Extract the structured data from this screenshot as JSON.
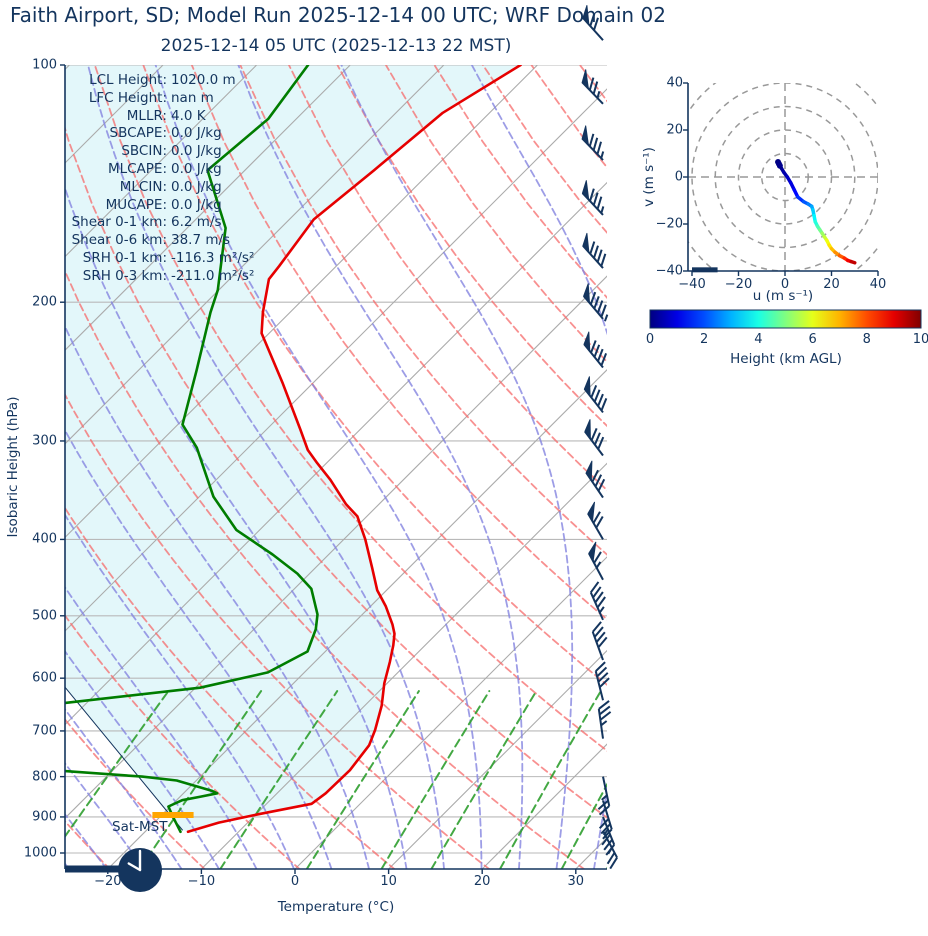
{
  "title": "Faith Airport, SD; Model Run 2025-12-14 00 UTC; WRF Domain 02",
  "subtitle": "2025-12-14 05 UTC  (2025-12-13 22 MST)",
  "colors": {
    "ink": "#14355e",
    "temperature": "#e60000",
    "dewpoint": "#007d00",
    "fill": "#e3f7fa",
    "isobar": "#b9b9b9",
    "isotherm": "#ababab",
    "dry_adiabat": "#f56b6b",
    "moist_adiabat": "#8585e0",
    "mixing_ratio": "#2f9e2f",
    "lcl_marker": "#ffa500",
    "hodo_grid": "#999999"
  },
  "skewt": {
    "xlabel": "Temperature (°C)",
    "ylabel": "Isobaric Height (hPa)",
    "surface_label": "Sat-MST",
    "x_ticks": [
      -20,
      -10,
      0,
      10,
      20,
      30
    ],
    "y_ticks": [
      100,
      200,
      300,
      400,
      500,
      600,
      700,
      800,
      900,
      1000
    ],
    "stats": [
      {
        "label": "LCL Height",
        "value": "1020.0 m"
      },
      {
        "label": "LFC Height",
        "value": "nan m"
      },
      {
        "label": "MLLR",
        "value": "4.0 K"
      },
      {
        "label": "SBCAPE",
        "value": "0.0 J/kg"
      },
      {
        "label": "SBCIN",
        "value": "0.0 J/kg"
      },
      {
        "label": "MLCAPE",
        "value": "0.0 J/kg"
      },
      {
        "label": "MLCIN",
        "value": "0.0 J/kg"
      },
      {
        "label": "MUCAPE",
        "value": "0.0 J/kg"
      },
      {
        "label": "Shear 0-1 km",
        "value": "6.2 m/s"
      },
      {
        "label": "Shear 0-6 km",
        "value": "38.7 m/s"
      },
      {
        "label": "SRH 0-1 km",
        "value": "-116.3 m²/s²"
      },
      {
        "label": "SRH 0-3 km",
        "value": "-211.0 m²/s²"
      }
    ]
  },
  "hodograph": {
    "u_label": "u (m s⁻¹)",
    "v_label": "v (m s⁻¹)",
    "ticks": [
      -40,
      -20,
      0,
      20,
      40
    ],
    "rings": [
      10,
      20,
      30,
      40,
      50
    ],
    "colorbar": {
      "label": "Height (km AGL)",
      "min": 0,
      "max": 10,
      "ticks": [
        0,
        2,
        4,
        6,
        8,
        10
      ],
      "colormap": "jet"
    }
  },
  "chart_data": [
    {
      "type": "skewt",
      "pressure_range_hpa": [
        100,
        1050
      ],
      "temperature_axis_c": [
        -25,
        33
      ],
      "isotherm_step_c": 10,
      "isobar_step_hpa": 100,
      "dry_adiabats_theta_k": {
        "start": 240,
        "end": 440,
        "step": 10
      },
      "moist_adiabats_start_c": {
        "start": -60,
        "end": 32,
        "step": 4
      },
      "mixing_ratios_g_kg": [
        0.4,
        1,
        2,
        4,
        7,
        10,
        16,
        24,
        32
      ],
      "temperature_profile_p_t": [
        [
          100,
          -61.8
        ],
        [
          115,
          -65.0
        ],
        [
          136,
          -66.2
        ],
        [
          157,
          -67.4
        ],
        [
          180,
          -66.1
        ],
        [
          187,
          -65.8
        ],
        [
          206,
          -62.9
        ],
        [
          219,
          -60.8
        ],
        [
          253,
          -53.3
        ],
        [
          290,
          -46.4
        ],
        [
          308,
          -43.4
        ],
        [
          320,
          -41.0
        ],
        [
          336,
          -37.8
        ],
        [
          361,
          -33.5
        ],
        [
          374,
          -31.0
        ],
        [
          400,
          -27.7
        ],
        [
          435,
          -23.9
        ],
        [
          464,
          -21.0
        ],
        [
          486,
          -18.4
        ],
        [
          513,
          -15.7
        ],
        [
          527,
          -14.5
        ],
        [
          545,
          -13.4
        ],
        [
          572,
          -12.0
        ],
        [
          609,
          -10.3
        ],
        [
          650,
          -8.2
        ],
        [
          698,
          -6.3
        ],
        [
          730,
          -5.3
        ],
        [
          785,
          -4.7
        ],
        [
          840,
          -4.8
        ],
        [
          866,
          -5.2
        ],
        [
          893,
          -9.8
        ],
        [
          915,
          -13.1
        ],
        [
          940,
          -15.4
        ]
      ],
      "dewpoint_profile_p_t": [
        [
          100,
          -84.5
        ],
        [
          117,
          -83.0
        ],
        [
          136,
          -84.0
        ],
        [
          161,
          -75.9
        ],
        [
          193,
          -70.1
        ],
        [
          206,
          -68.5
        ],
        [
          244,
          -63.8
        ],
        [
          286,
          -59.5
        ],
        [
          306,
          -55.5
        ],
        [
          353,
          -48.5
        ],
        [
          389,
          -42.5
        ],
        [
          418,
          -36.0
        ],
        [
          442,
          -31.3
        ],
        [
          462,
          -28.2
        ],
        [
          498,
          -24.8
        ],
        [
          520,
          -23.4
        ],
        [
          555,
          -21.9
        ],
        [
          590,
          -23.9
        ],
        [
          617,
          -29.5
        ],
        [
          645,
          -42.3
        ],
        [
          680,
          -55.0
        ],
        [
          730,
          -55.0
        ],
        [
          770,
          -45.0
        ],
        [
          787,
          -35.1
        ],
        [
          800,
          -26.2
        ],
        [
          809,
          -22.1
        ],
        [
          834,
          -17.2
        ],
        [
          840,
          -16.4
        ],
        [
          848,
          -17.8
        ],
        [
          857,
          -19.4
        ],
        [
          873,
          -20.2
        ],
        [
          900,
          -18.6
        ],
        [
          940,
          -16.2
        ]
      ],
      "aux_line_p_t": [
        [
          616,
          -44.0
        ],
        [
          935,
          -16.2
        ]
      ],
      "lcl_marker": {
        "pressure": 895,
        "t_from": -21.0,
        "t_to": -16.6
      },
      "surface_bar": {
        "present": true
      },
      "surface_clock_hour": 22,
      "wind_barbs_p_dir_pen_full_half": [
        [
          93,
          318,
          1,
          2,
          0
        ],
        [
          112,
          316,
          1,
          2,
          1
        ],
        [
          132,
          316,
          1,
          3,
          1
        ],
        [
          155,
          317,
          1,
          3,
          1
        ],
        [
          181,
          318,
          1,
          4,
          0
        ],
        [
          210,
          320,
          1,
          4,
          1
        ],
        [
          242,
          321,
          1,
          4,
          0
        ],
        [
          276,
          322,
          1,
          4,
          0
        ],
        [
          313,
          323,
          1,
          3,
          0
        ],
        [
          354,
          326,
          1,
          3,
          0
        ],
        [
          400,
          330,
          1,
          2,
          0
        ],
        [
          450,
          332,
          1,
          1,
          1
        ],
        [
          506,
          336,
          0,
          4,
          1
        ],
        [
          569,
          340,
          0,
          4,
          0
        ],
        [
          640,
          346,
          0,
          4,
          0
        ],
        [
          716,
          352,
          0,
          3,
          1
        ],
        [
          800,
          168,
          0,
          2,
          1
        ],
        [
          858,
          163,
          0,
          3,
          0
        ],
        [
          900,
          158,
          0,
          3,
          1
        ],
        [
          938,
          152,
          0,
          2,
          1
        ]
      ]
    },
    {
      "type": "hodograph",
      "u_range": [
        -40,
        40
      ],
      "v_range": [
        -40,
        40
      ],
      "trace_u_v_heightkm": [
        [
          -3.0,
          6.4,
          0
        ],
        [
          -2.6,
          5.6,
          0.06
        ],
        [
          -2.2,
          4.8,
          0.12
        ],
        [
          -1.6,
          3.8,
          0.2
        ],
        [
          -0.5,
          2.0,
          0.35
        ],
        [
          1.0,
          0.0,
          0.55
        ],
        [
          2.5,
          -2.5,
          0.8
        ],
        [
          4.0,
          -5.5,
          1.1
        ],
        [
          5.5,
          -8.5,
          1.5
        ],
        [
          8.0,
          -10.5,
          1.9
        ],
        [
          10.0,
          -11.5,
          2.3
        ],
        [
          11.5,
          -12.5,
          2.7
        ],
        [
          12.0,
          -14.0,
          3.1
        ],
        [
          12.5,
          -16.5,
          3.5
        ],
        [
          13.0,
          -19.0,
          3.9
        ],
        [
          14.0,
          -21.0,
          4.3
        ],
        [
          15.0,
          -22.5,
          4.7
        ],
        [
          16.0,
          -24.0,
          5.1
        ],
        [
          17.0,
          -25.5,
          5.5
        ],
        [
          18.0,
          -27.0,
          5.9
        ],
        [
          19.0,
          -29.0,
          6.3
        ],
        [
          20.0,
          -30.5,
          6.7
        ],
        [
          21.5,
          -32.0,
          7.1
        ],
        [
          23.5,
          -33.5,
          7.6
        ],
        [
          25.5,
          -34.5,
          8.1
        ],
        [
          27.0,
          -35.5,
          8.6
        ],
        [
          28.5,
          -36.0,
          9.1
        ],
        [
          30.0,
          -36.5,
          9.6
        ]
      ],
      "baseline_bar": {
        "u_from": -40,
        "u_to": -29,
        "v": -39.5
      }
    }
  ]
}
